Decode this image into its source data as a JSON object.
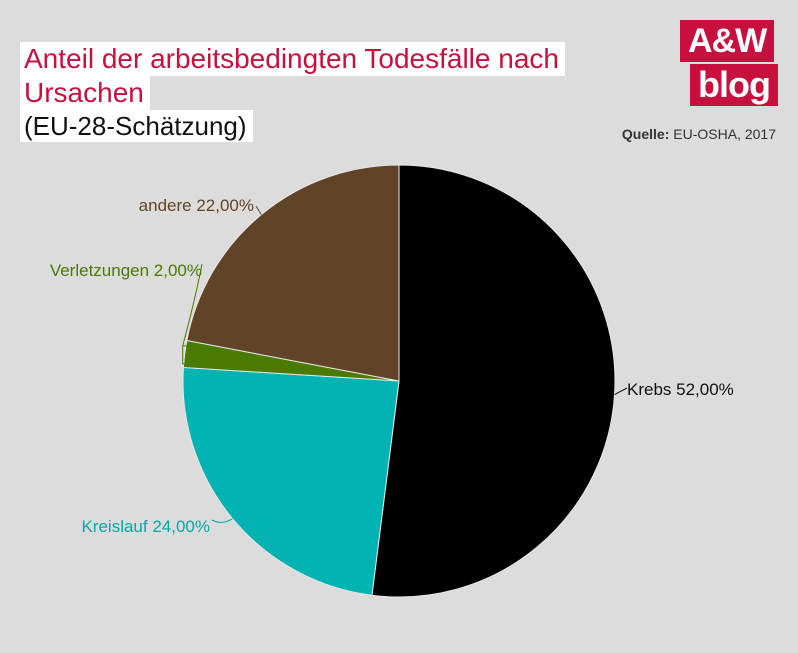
{
  "header": {
    "title_line1": "Anteil der arbeitsbedingten Todesfälle nach",
    "title_line2": "Ursachen",
    "subtitle": "(EU-28-Schätzung)"
  },
  "logo": {
    "line1": "A&W",
    "line2": "blog"
  },
  "source": {
    "label": "Quelle:",
    "text": " EU-OSHA, 2017"
  },
  "colors": {
    "brand": "#c8103f",
    "krebs": "#000000",
    "kreislauf": "#00b3b3",
    "verletzungen": "#4a7a00",
    "andere": "#614428"
  },
  "chart_data": {
    "type": "pie",
    "title": "Anteil der arbeitsbedingten Todesfälle nach Ursachen",
    "subtitle": "(EU-28-Schätzung)",
    "slices": [
      {
        "name": "Krebs",
        "value": 52,
        "label": "Krebs 52,00%",
        "color": "#000000",
        "label_color": "#111111"
      },
      {
        "name": "Kreislauf",
        "value": 24,
        "label": "Kreislauf 24,00%",
        "color": "#00b3b3",
        "label_color": "#00a8a8"
      },
      {
        "name": "Verletzungen",
        "value": 2,
        "label": "Verletzungen 2,00%",
        "color": "#4a7a00",
        "label_color": "#4a7a00"
      },
      {
        "name": "andere",
        "value": 22,
        "label": "andere 22,00%",
        "color": "#614428",
        "label_color": "#614428"
      }
    ],
    "start_angle": "top",
    "direction": "clockwise"
  }
}
